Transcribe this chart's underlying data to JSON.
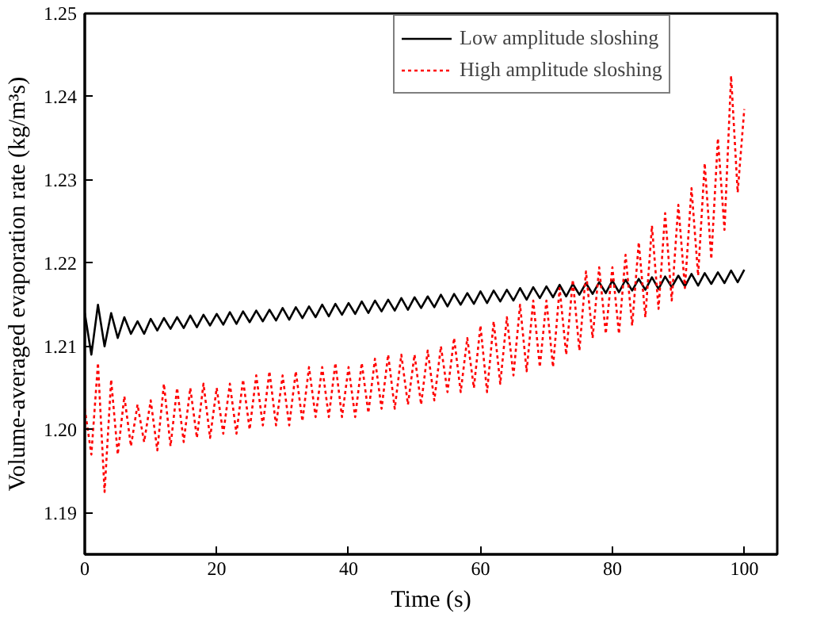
{
  "chart_data": {
    "type": "line",
    "xlabel": "Time (s)",
    "ylabel": "Volume-averaged evaporation rate (kg/m³s)",
    "x": [
      0,
      1,
      2,
      3,
      4,
      5,
      6,
      7,
      8,
      9,
      10,
      11,
      12,
      13,
      14,
      15,
      16,
      17,
      18,
      19,
      20,
      21,
      22,
      23,
      24,
      25,
      26,
      27,
      28,
      29,
      30,
      31,
      32,
      33,
      34,
      35,
      36,
      37,
      38,
      39,
      40,
      41,
      42,
      43,
      44,
      45,
      46,
      47,
      48,
      49,
      50,
      51,
      52,
      53,
      54,
      55,
      56,
      57,
      58,
      59,
      60,
      61,
      62,
      63,
      64,
      65,
      66,
      67,
      68,
      69,
      70,
      71,
      72,
      73,
      74,
      75,
      76,
      77,
      78,
      79,
      80,
      81,
      82,
      83,
      84,
      85,
      86,
      87,
      88,
      89,
      90,
      91,
      92,
      93,
      94,
      95,
      96,
      97,
      98,
      99,
      100
    ],
    "series": [
      {
        "name": "Low amplitude sloshing",
        "color": "#000000",
        "line_style": "solid",
        "values": [
          1.214,
          1.209,
          1.215,
          1.21,
          1.214,
          1.211,
          1.2135,
          1.2115,
          1.213,
          1.2115,
          1.2133,
          1.2119,
          1.2134,
          1.2121,
          1.2135,
          1.2122,
          1.2137,
          1.2123,
          1.2138,
          1.2125,
          1.2139,
          1.2126,
          1.2141,
          1.2127,
          1.2142,
          1.2129,
          1.2143,
          1.213,
          1.2144,
          1.2131,
          1.2146,
          1.2132,
          1.2147,
          1.2134,
          1.2148,
          1.2135,
          1.215,
          1.2136,
          1.2151,
          1.2138,
          1.2152,
          1.2139,
          1.2154,
          1.214,
          1.2155,
          1.2142,
          1.2156,
          1.2143,
          1.2158,
          1.2144,
          1.2159,
          1.2146,
          1.216,
          1.2147,
          1.2162,
          1.2148,
          1.2163,
          1.215,
          1.2164,
          1.2151,
          1.2166,
          1.2152,
          1.2167,
          1.2154,
          1.2168,
          1.2155,
          1.217,
          1.2156,
          1.2171,
          1.2158,
          1.2172,
          1.2159,
          1.2174,
          1.216,
          1.2175,
          1.2162,
          1.2176,
          1.2163,
          1.2177,
          1.2164,
          1.2179,
          1.2165,
          1.218,
          1.2167,
          1.2181,
          1.2168,
          1.2183,
          1.2169,
          1.2184,
          1.2171,
          1.2185,
          1.2172,
          1.2187,
          1.2173,
          1.2188,
          1.2175,
          1.2189,
          1.2176,
          1.2191,
          1.2177,
          1.2192
        ]
      },
      {
        "name": "High amplitude sloshing",
        "color": "#ff0000",
        "line_style": "dotted",
        "values": [
          1.2025,
          1.197,
          1.208,
          1.1925,
          1.206,
          1.197,
          1.204,
          1.198,
          1.203,
          1.1985,
          1.2035,
          1.1975,
          1.2055,
          1.198,
          1.205,
          1.1985,
          1.205,
          1.199,
          1.2055,
          1.199,
          1.205,
          1.1995,
          1.2055,
          1.1995,
          1.206,
          1.2,
          1.2065,
          1.2005,
          1.207,
          1.2005,
          1.2065,
          1.2005,
          1.207,
          1.201,
          1.2075,
          1.2015,
          1.2075,
          1.2015,
          1.208,
          1.2015,
          1.2075,
          1.2015,
          1.208,
          1.202,
          1.2085,
          1.2025,
          1.209,
          1.2025,
          1.209,
          1.203,
          1.209,
          1.203,
          1.2095,
          1.2035,
          1.21,
          1.2045,
          1.211,
          1.2045,
          1.211,
          1.205,
          1.2125,
          1.2045,
          1.213,
          1.2055,
          1.2135,
          1.2065,
          1.215,
          1.207,
          1.2155,
          1.2075,
          1.2155,
          1.2075,
          1.217,
          1.209,
          1.218,
          1.2095,
          1.219,
          1.211,
          1.2195,
          1.2115,
          1.2195,
          1.2115,
          1.221,
          1.2125,
          1.2225,
          1.2135,
          1.2245,
          1.2145,
          1.226,
          1.2155,
          1.227,
          1.217,
          1.229,
          1.2185,
          1.232,
          1.2205,
          1.235,
          1.224,
          1.2425,
          1.2285,
          1.2385
        ]
      }
    ],
    "xlim": [
      0,
      105
    ],
    "xticks": [
      0,
      20,
      40,
      60,
      80,
      100
    ],
    "ylim": [
      1.185,
      1.25
    ],
    "yticks": [
      1.19,
      {
        "value": 1.2,
        "label": "1.20"
      },
      1.21,
      1.22,
      1.23,
      1.24,
      1.25
    ],
    "legend": "top right",
    "grid": false
  }
}
